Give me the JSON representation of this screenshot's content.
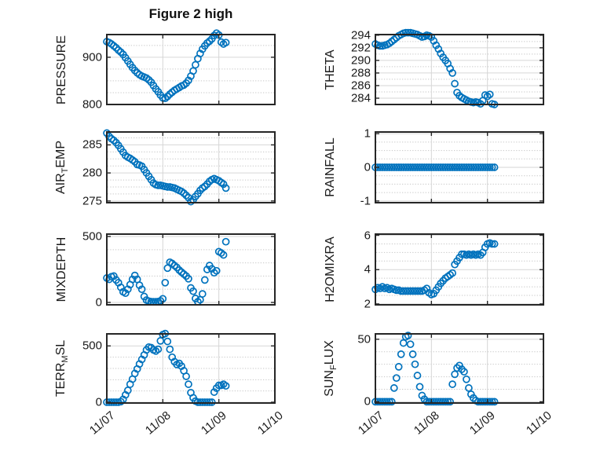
{
  "title": "Figure 2 high",
  "colors": {
    "marker": "#0072BD",
    "axis_box": "#262626",
    "major_grid": "#d6d6d6",
    "minor_grid": "#9a9a9a",
    "text": "#1a1a1a",
    "background": "#ffffff"
  },
  "chart_data": {
    "type": "scatter",
    "legend": "none",
    "grid": "major solid + minor dotted",
    "x": {
      "tick_labels": [
        "11/07",
        "11/08",
        "11/09",
        "11/10"
      ],
      "ticks_days": [
        0,
        1,
        2,
        3
      ],
      "xlim_days": [
        0,
        3
      ],
      "t_days": [
        0,
        0.042,
        0.083,
        0.125,
        0.167,
        0.208,
        0.25,
        0.292,
        0.333,
        0.375,
        0.417,
        0.458,
        0.5,
        0.542,
        0.583,
        0.625,
        0.667,
        0.708,
        0.75,
        0.792,
        0.833,
        0.875,
        0.917,
        0.958,
        1,
        1.042,
        1.083,
        1.125,
        1.167,
        1.208,
        1.25,
        1.292,
        1.333,
        1.375,
        1.417,
        1.458,
        1.5,
        1.542,
        1.583,
        1.625,
        1.667,
        1.708,
        1.75,
        1.792,
        1.833,
        1.875,
        1.917,
        1.958,
        2,
        2.042,
        2.083,
        2.125
      ]
    },
    "plots": [
      {
        "id": "pressure",
        "row": 0,
        "col": 0,
        "ylabel": "PRESSURE",
        "ylabel_parts": [
          {
            "t": "PRESSURE",
            "sub": false
          }
        ],
        "ylim": [
          800,
          948
        ],
        "yticks": [
          800,
          900
        ],
        "ytick_labels": [
          "800",
          "900"
        ],
        "yminor": [
          825,
          850,
          875,
          925
        ],
        "y": [
          933,
          931,
          928,
          924,
          920,
          915,
          911,
          906,
          899,
          892,
          885,
          878,
          872,
          867,
          863,
          860,
          858,
          856,
          852,
          847,
          840,
          833,
          827,
          820,
          814,
          813,
          817,
          822,
          826,
          830,
          833,
          836,
          839,
          841,
          845,
          851,
          860,
          871,
          884,
          897,
          908,
          917,
          924,
          930,
          934,
          939,
          946,
          951,
          947,
          932,
          928,
          931
        ]
      },
      {
        "id": "theta",
        "row": 0,
        "col": 1,
        "ylabel": "THETA",
        "ylabel_parts": [
          {
            "t": "THETA",
            "sub": false
          }
        ],
        "ylim": [
          283,
          294.1
        ],
        "yticks": [
          284,
          286,
          288,
          290,
          292,
          294
        ],
        "ytick_labels": [
          "284",
          "286",
          "288",
          "290",
          "292",
          "294"
        ],
        "yminor": [
          285,
          287,
          289,
          291,
          293
        ],
        "y": [
          292.6,
          292.4,
          292.3,
          292.3,
          292.4,
          292.5,
          292.7,
          293.0,
          293.3,
          293.6,
          293.9,
          294.1,
          294.3,
          294.4,
          294.4,
          294.4,
          294.3,
          294.2,
          294.1,
          293.9,
          293.7,
          293.8,
          294.0,
          293.9,
          293.7,
          293.1,
          292.4,
          291.8,
          291.1,
          290.5,
          290.0,
          289.5,
          288.7,
          288.0,
          286.3,
          284.9,
          284.4,
          284.1,
          283.9,
          283.7,
          283.5,
          283.4,
          283.3,
          283.4,
          283.3,
          283.1,
          283.6,
          284.5,
          284.3,
          284.6,
          283.1,
          283.0
        ]
      },
      {
        "id": "air-temp",
        "row": 1,
        "col": 0,
        "ylabel": "AIR_TEMP",
        "ylabel_parts": [
          {
            "t": "AIR",
            "sub": false
          },
          {
            "t": "T",
            "sub": true
          },
          {
            "t": "EMP",
            "sub": false
          }
        ],
        "ylim": [
          274.7,
          287.3
        ],
        "yticks": [
          275,
          280,
          285
        ],
        "ytick_labels": [
          "275",
          "280",
          "285"
        ],
        "yminor": [
          276.25,
          277.5,
          278.75,
          281.25,
          282.5,
          283.75,
          286.25
        ],
        "y": [
          287.1,
          286.5,
          286.1,
          285.8,
          285.4,
          284.9,
          284.3,
          283.7,
          283.1,
          282.8,
          282.6,
          282.3,
          282.0,
          281.5,
          281.4,
          281.2,
          280.6,
          280.0,
          279.4,
          278.8,
          278.2,
          277.9,
          277.8,
          277.8,
          277.7,
          277.6,
          277.5,
          277.5,
          277.4,
          277.3,
          277.1,
          276.9,
          276.7,
          276.4,
          276.0,
          275.6,
          274.9,
          275.2,
          275.8,
          276.3,
          276.9,
          277.3,
          277.6,
          278.0,
          278.5,
          278.8,
          279.0,
          278.8,
          278.6,
          278.3,
          278.0,
          277.3
        ]
      },
      {
        "id": "rainfall",
        "row": 1,
        "col": 1,
        "ylabel": "RAINFALL",
        "ylabel_parts": [
          {
            "t": "RAINFALL",
            "sub": false
          }
        ],
        "ylim": [
          -1.05,
          1.05
        ],
        "yticks": [
          -1,
          0,
          1
        ],
        "ytick_labels": [
          "-1",
          "0",
          "1"
        ],
        "yminor": [
          -0.75,
          -0.5,
          -0.25,
          0.25,
          0.5,
          0.75
        ],
        "y": [
          0,
          0,
          0,
          0,
          0,
          0,
          0,
          0,
          0,
          0,
          0,
          0,
          0,
          0,
          0,
          0,
          0,
          0,
          0,
          0,
          0,
          0,
          0,
          0,
          0,
          0,
          0,
          0,
          0,
          0,
          0,
          0,
          0,
          0,
          0,
          0,
          0,
          0,
          0,
          0,
          0,
          0,
          0,
          0,
          0,
          0,
          0,
          0,
          0,
          0,
          0,
          0
        ]
      },
      {
        "id": "mixdepth",
        "row": 2,
        "col": 0,
        "ylabel": "MIXDEPTH",
        "ylabel_parts": [
          {
            "t": "MIXDEPTH",
            "sub": false
          }
        ],
        "ylim": [
          -18,
          518
        ],
        "yticks": [
          0,
          500
        ],
        "ytick_labels": [
          "0",
          "500"
        ],
        "yminor": [
          100,
          200,
          300,
          400
        ],
        "y": [
          185,
          175,
          195,
          200,
          170,
          150,
          115,
          80,
          70,
          100,
          135,
          175,
          205,
          175,
          130,
          100,
          45,
          18,
          10,
          6,
          5,
          5,
          7,
          12,
          28,
          150,
          260,
          305,
          295,
          280,
          265,
          245,
          230,
          215,
          200,
          180,
          110,
          85,
          30,
          5,
          20,
          65,
          170,
          250,
          280,
          255,
          225,
          240,
          385,
          375,
          360,
          460
        ]
      },
      {
        "id": "h2omixra",
        "row": 2,
        "col": 1,
        "ylabel": "H2OMIXRA",
        "ylabel_parts": [
          {
            "t": "H2OMIXRA",
            "sub": false
          }
        ],
        "ylim": [
          1.95,
          6.07
        ],
        "yticks": [
          2,
          4,
          6
        ],
        "ytick_labels": [
          "2",
          "4",
          "6"
        ],
        "yminor": [
          2.5,
          3,
          3.5,
          4.5,
          5,
          5.5
        ],
        "y": [
          2.85,
          2.95,
          2.9,
          3.0,
          2.9,
          2.95,
          2.85,
          2.9,
          2.85,
          2.8,
          2.8,
          2.75,
          2.75,
          2.75,
          2.75,
          2.75,
          2.75,
          2.75,
          2.75,
          2.75,
          2.75,
          2.8,
          2.9,
          2.65,
          2.55,
          2.6,
          2.8,
          3.0,
          3.2,
          3.35,
          3.5,
          3.6,
          3.7,
          3.8,
          4.3,
          4.5,
          4.7,
          4.9,
          4.9,
          4.85,
          4.9,
          4.85,
          4.9,
          4.85,
          4.9,
          4.85,
          5.0,
          5.3,
          5.5,
          5.55,
          5.5,
          5.5
        ]
      },
      {
        "id": "terr-msl",
        "row": 3,
        "col": 0,
        "ylabel": "TERR_MSL",
        "ylabel_parts": [
          {
            "t": "TERR",
            "sub": false
          },
          {
            "t": "M",
            "sub": true
          },
          {
            "t": "SL",
            "sub": false
          }
        ],
        "ylim": [
          -7,
          607
        ],
        "yticks": [
          0,
          500
        ],
        "ytick_labels": [
          "0",
          "500"
        ],
        "yminor": [
          100,
          200,
          300,
          400
        ],
        "y": [
          0,
          0,
          0,
          0,
          0,
          0,
          5,
          25,
          65,
          105,
          160,
          205,
          255,
          295,
          340,
          380,
          420,
          465,
          490,
          485,
          465,
          455,
          470,
          545,
          600,
          610,
          540,
          470,
          400,
          360,
          335,
          345,
          320,
          280,
          230,
          160,
          85,
          40,
          10,
          0,
          0,
          0,
          0,
          0,
          0,
          0,
          90,
          125,
          150,
          150,
          160,
          145
        ]
      },
      {
        "id": "sun-flux",
        "row": 3,
        "col": 1,
        "ylabel": "SUN_FLUX",
        "ylabel_parts": [
          {
            "t": "SUN",
            "sub": false
          },
          {
            "t": "F",
            "sub": true
          },
          {
            "t": "LUX",
            "sub": false
          }
        ],
        "ylim": [
          -1,
          54.3
        ],
        "yticks": [
          0,
          50
        ],
        "ytick_labels": [
          "0",
          "50"
        ],
        "yminor": [
          10,
          20,
          30,
          40
        ],
        "y": [
          0,
          0,
          0,
          0,
          0,
          0,
          0,
          0,
          11,
          19,
          28,
          38,
          47,
          52,
          53,
          46,
          38,
          30,
          21,
          12,
          5,
          2,
          0,
          0,
          0,
          0,
          0,
          0,
          0,
          0,
          0,
          0,
          0,
          14,
          22,
          27,
          29,
          26,
          24,
          18,
          11,
          6,
          3,
          1,
          0,
          0,
          0,
          0,
          0,
          0,
          0,
          0
        ]
      }
    ]
  }
}
